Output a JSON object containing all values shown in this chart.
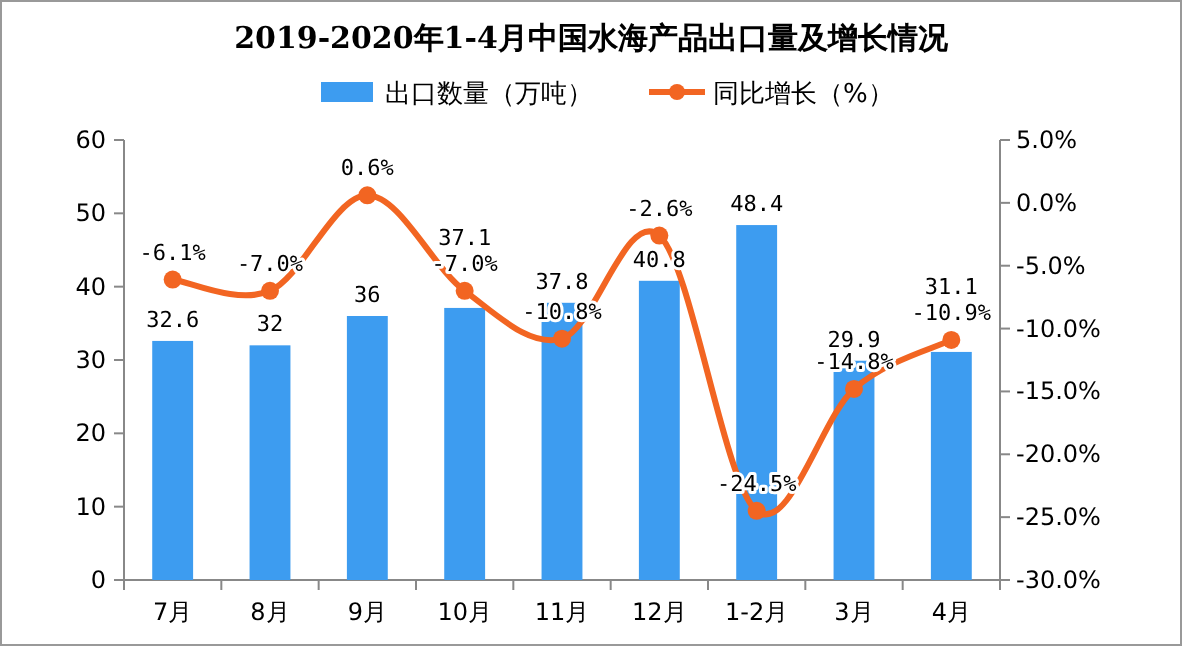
{
  "chart_data": {
    "type": "bar",
    "title": "2019-2020年1-4月中国水海产品出口量及增长情况",
    "categories": [
      "7月",
      "8月",
      "9月",
      "10月",
      "11月",
      "12月",
      "1-2月",
      "3月",
      "4月"
    ],
    "series": [
      {
        "name": "出口数量（万吨）",
        "type": "bar",
        "color": "#3d9cf0",
        "values": [
          32.6,
          32,
          36,
          37.1,
          37.8,
          40.8,
          48.4,
          29.9,
          31.1
        ],
        "value_labels": [
          "32.6",
          "32",
          "36",
          "37.1",
          "37.8",
          "40.8",
          "48.4",
          "29.9",
          "31.1"
        ]
      },
      {
        "name": "同比增长（%）",
        "type": "line",
        "axis": "y2",
        "color": "#f26522",
        "marker": "circle",
        "values": [
          -6.1,
          -7.0,
          0.6,
          -7.0,
          -10.8,
          -2.6,
          -24.5,
          -14.8,
          -10.9
        ],
        "value_labels": [
          "-6.1%",
          "-7.0%",
          "0.6%",
          "-7.0%",
          "-10.8%",
          "-2.6%",
          "-24.5%",
          "-14.8%",
          "-10.9%"
        ]
      }
    ],
    "ylim": [
      0,
      60
    ],
    "yticks": [
      0,
      10,
      20,
      30,
      40,
      50,
      60
    ],
    "y2lim": [
      -30,
      5
    ],
    "y2ticks": [
      {
        "value": -30,
        "label": "-30.0%"
      },
      {
        "value": -25,
        "label": "-25.0%"
      },
      {
        "value": -20,
        "label": "-20.0%"
      },
      {
        "value": -15,
        "label": "-15.0%"
      },
      {
        "value": -10,
        "label": "-10.0%"
      },
      {
        "value": -5,
        "label": "-5.0%"
      },
      {
        "value": 0,
        "label": "0.0%"
      },
      {
        "value": 5,
        "label": "5.0%"
      }
    ],
    "legend": "top",
    "grid": false
  }
}
